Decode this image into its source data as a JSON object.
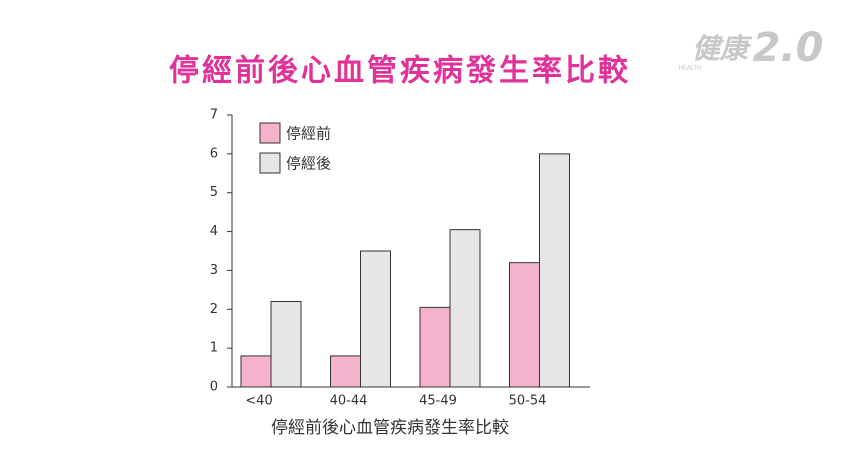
{
  "chart_data": {
    "type": "bar",
    "title": "停經前後心血管疾病發生率比較",
    "x_label": "停經前後心血管疾病發生率比較",
    "watermark": {
      "name": "健康",
      "version": "2.0",
      "sub": "HEALTH"
    },
    "categories": [
      "<40",
      "40-44",
      "45-49",
      "50-54"
    ],
    "series": [
      {
        "name": "停經前",
        "color": "#f5b2cc",
        "values": [
          0.8,
          0.8,
          2.05,
          3.2
        ]
      },
      {
        "name": "停經後",
        "color": "#e6e6e6",
        "values": [
          2.2,
          3.5,
          4.05,
          6.0
        ]
      }
    ],
    "ylim": [
      0,
      7
    ],
    "yticks": [
      0,
      1,
      2,
      3,
      4,
      5,
      6,
      7
    ],
    "grid": false,
    "legend": "top-left"
  }
}
